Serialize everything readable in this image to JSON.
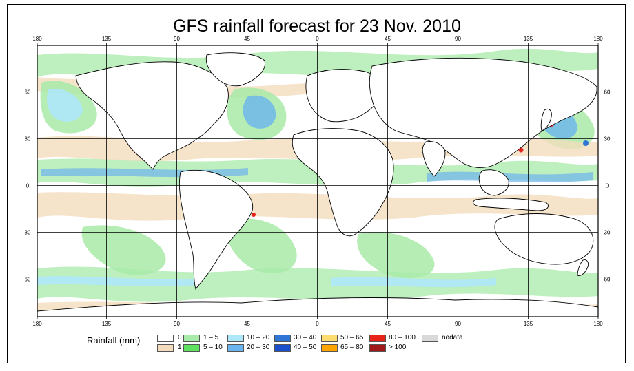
{
  "title": "GFS rainfall forecast for 23 Nov. 2010",
  "lon_ticks": [
    "180",
    "135",
    "90",
    "45",
    "0",
    "45",
    "90",
    "135",
    "180"
  ],
  "lat_ticks": [
    "60",
    "30",
    "0",
    "30",
    "60"
  ],
  "legend": {
    "label": "Rainfall (mm)",
    "items": [
      {
        "text": "0",
        "color": "#ffffff"
      },
      {
        "text": "1",
        "color": "#f2dcbd"
      },
      {
        "text": "1 – 5",
        "color": "#a8eaa8"
      },
      {
        "text": "5 – 10",
        "color": "#5fe25f"
      },
      {
        "text": "10 – 20",
        "color": "#aee7f8"
      },
      {
        "text": "20 – 30",
        "color": "#6cb4ee"
      },
      {
        "text": "30 – 40",
        "color": "#2f75d6"
      },
      {
        "text": "40 – 50",
        "color": "#1c4fcc"
      },
      {
        "text": "50 – 65",
        "color": "#ffdc70"
      },
      {
        "text": "65 – 80",
        "color": "#ffa500"
      },
      {
        "text": "80 – 100",
        "color": "#e8231a"
      },
      {
        "text": "> 100",
        "color": "#a0181a"
      },
      {
        "text": "nodata",
        "color": "#d9d9d9"
      }
    ]
  },
  "colors": {
    "light_rain": "#f2dcbd",
    "rain_1_5": "#a8eaa8",
    "rain_5_10": "#5fe25f",
    "rain_10_20": "#aee7f8",
    "rain_20_30": "#6cb4ee",
    "rain_30_40": "#2f75d6",
    "rain_80_100": "#e8231a"
  }
}
